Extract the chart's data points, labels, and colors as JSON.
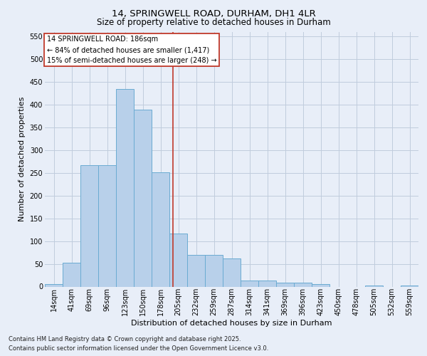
{
  "title1": "14, SPRINGWELL ROAD, DURHAM, DH1 4LR",
  "title2": "Size of property relative to detached houses in Durham",
  "xlabel": "Distribution of detached houses by size in Durham",
  "ylabel": "Number of detached properties",
  "categories": [
    "14sqm",
    "41sqm",
    "69sqm",
    "96sqm",
    "123sqm",
    "150sqm",
    "178sqm",
    "205sqm",
    "232sqm",
    "259sqm",
    "287sqm",
    "314sqm",
    "341sqm",
    "369sqm",
    "396sqm",
    "423sqm",
    "450sqm",
    "478sqm",
    "505sqm",
    "532sqm",
    "559sqm"
  ],
  "values": [
    5,
    52,
    267,
    267,
    435,
    390,
    252,
    117,
    70,
    70,
    62,
    14,
    13,
    8,
    8,
    6,
    0,
    0,
    3,
    0,
    3
  ],
  "bar_color": "#b8d0ea",
  "bar_edge_color": "#6aabd2",
  "vline_color": "#c0392b",
  "vline_pos": 6.7,
  "ylim": [
    0,
    560
  ],
  "yticks": [
    0,
    50,
    100,
    150,
    200,
    250,
    300,
    350,
    400,
    450,
    500,
    550
  ],
  "annotation_title": "14 SPRINGWELL ROAD: 186sqm",
  "annotation_line1": "← 84% of detached houses are smaller (1,417)",
  "annotation_line2": "15% of semi-detached houses are larger (248) →",
  "footer1": "Contains HM Land Registry data © Crown copyright and database right 2025.",
  "footer2": "Contains public sector information licensed under the Open Government Licence v3.0.",
  "bg_color": "#e8eef8",
  "plot_bg_color": "#e8eef8",
  "grid_color": "#c0ccdd",
  "title1_fontsize": 9.5,
  "title2_fontsize": 8.5,
  "xlabel_fontsize": 8.0,
  "ylabel_fontsize": 8.0,
  "tick_fontsize": 7.0,
  "ann_fontsize": 7.0,
  "footer_fontsize": 6.0
}
